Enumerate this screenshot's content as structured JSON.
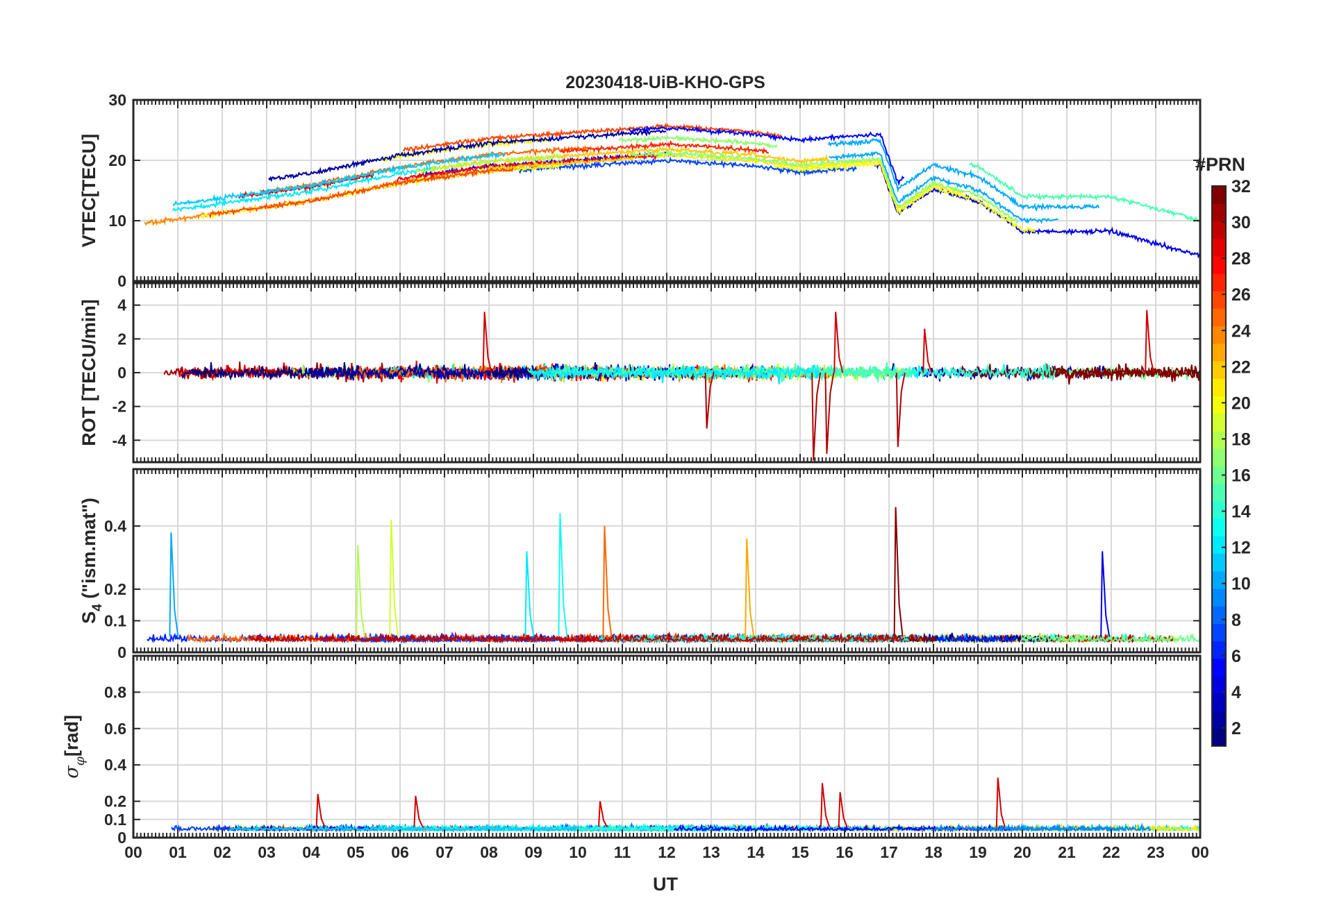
{
  "title": "20230418-UiB-KHO-GPS",
  "chart_data": [
    {
      "type": "line",
      "panel": "vtec",
      "ylabel": "VTEC[TECU]",
      "ylim": [
        0,
        30
      ],
      "yticks": [
        0,
        10,
        20,
        30
      ],
      "series_note": "multi-PRN traces colored by PRN",
      "trend": [
        {
          "t": 0,
          "v": 12
        },
        {
          "t": 2,
          "v": 14
        },
        {
          "t": 4,
          "v": 16
        },
        {
          "t": 6,
          "v": 19
        },
        {
          "t": 8,
          "v": 21
        },
        {
          "t": 10,
          "v": 22
        },
        {
          "t": 12,
          "v": 23
        },
        {
          "t": 14,
          "v": 22
        },
        {
          "t": 15,
          "v": 21
        },
        {
          "t": 16.8,
          "v": 22
        },
        {
          "t": 17.2,
          "v": 14
        },
        {
          "t": 18,
          "v": 18
        },
        {
          "t": 19,
          "v": 16
        },
        {
          "t": 20,
          "v": 11
        },
        {
          "t": 22,
          "v": 11
        },
        {
          "t": 23,
          "v": 9
        },
        {
          "t": 24,
          "v": 7
        }
      ]
    },
    {
      "type": "line",
      "panel": "rot",
      "ylabel": "ROT [TECU/min]",
      "ylim": [
        -5.3,
        5.3
      ],
      "yticks": [
        -4,
        -2,
        0,
        2,
        4
      ],
      "spikes": [
        {
          "t": 7.9,
          "v": 3.6
        },
        {
          "t": 15.3,
          "v": -5.2
        },
        {
          "t": 15.8,
          "v": 3.6
        },
        {
          "t": 17.2,
          "v": -4.4
        },
        {
          "t": 17.8,
          "v": 2.6
        },
        {
          "t": 22.8,
          "v": 3.7
        },
        {
          "t": 12.9,
          "v": -3.3
        },
        {
          "t": 15.6,
          "v": -4.8
        }
      ]
    },
    {
      "type": "line",
      "panel": "s4",
      "ylabel": "S4 (\"ism.mat\")",
      "ylim": [
        0,
        0.58
      ],
      "yticks": [
        0,
        0.1,
        0.2,
        0.4
      ],
      "spikes": [
        {
          "t": 0.85,
          "v": 0.38,
          "prn": 10
        },
        {
          "t": 5.05,
          "v": 0.34,
          "prn": 18
        },
        {
          "t": 5.8,
          "v": 0.42,
          "prn": 19
        },
        {
          "t": 8.85,
          "v": 0.32,
          "prn": 12
        },
        {
          "t": 9.6,
          "v": 0.44,
          "prn": 13
        },
        {
          "t": 10.6,
          "v": 0.4,
          "prn": 25
        },
        {
          "t": 13.8,
          "v": 0.36,
          "prn": 23
        },
        {
          "t": 17.15,
          "v": 0.46,
          "prn": 32
        },
        {
          "t": 21.8,
          "v": 0.32,
          "prn": 4
        }
      ]
    },
    {
      "type": "line",
      "panel": "sigma",
      "ylabel": "σφ[rad]",
      "ylim": [
        0,
        1
      ],
      "yticks": [
        0,
        0.1,
        0.2,
        0.4,
        0.6,
        0.8
      ],
      "spikes": [
        {
          "t": 4.15,
          "v": 0.24
        },
        {
          "t": 6.35,
          "v": 0.23
        },
        {
          "t": 15.5,
          "v": 0.3
        },
        {
          "t": 15.9,
          "v": 0.25
        },
        {
          "t": 19.45,
          "v": 0.33
        },
        {
          "t": 10.5,
          "v": 0.2
        }
      ]
    }
  ],
  "xaxis": {
    "label": "UT",
    "ticks": [
      "00",
      "01",
      "02",
      "03",
      "04",
      "05",
      "06",
      "07",
      "08",
      "09",
      "10",
      "11",
      "12",
      "13",
      "14",
      "15",
      "16",
      "17",
      "18",
      "19",
      "20",
      "21",
      "22",
      "23",
      "00"
    ]
  },
  "colorbar": {
    "label": "#PRN",
    "ticks": [
      "2",
      "4",
      "6",
      "8",
      "10",
      "12",
      "14",
      "16",
      "18",
      "20",
      "22",
      "24",
      "26",
      "28",
      "30",
      "32"
    ],
    "range": [
      1,
      32
    ],
    "colormap": "jet"
  }
}
